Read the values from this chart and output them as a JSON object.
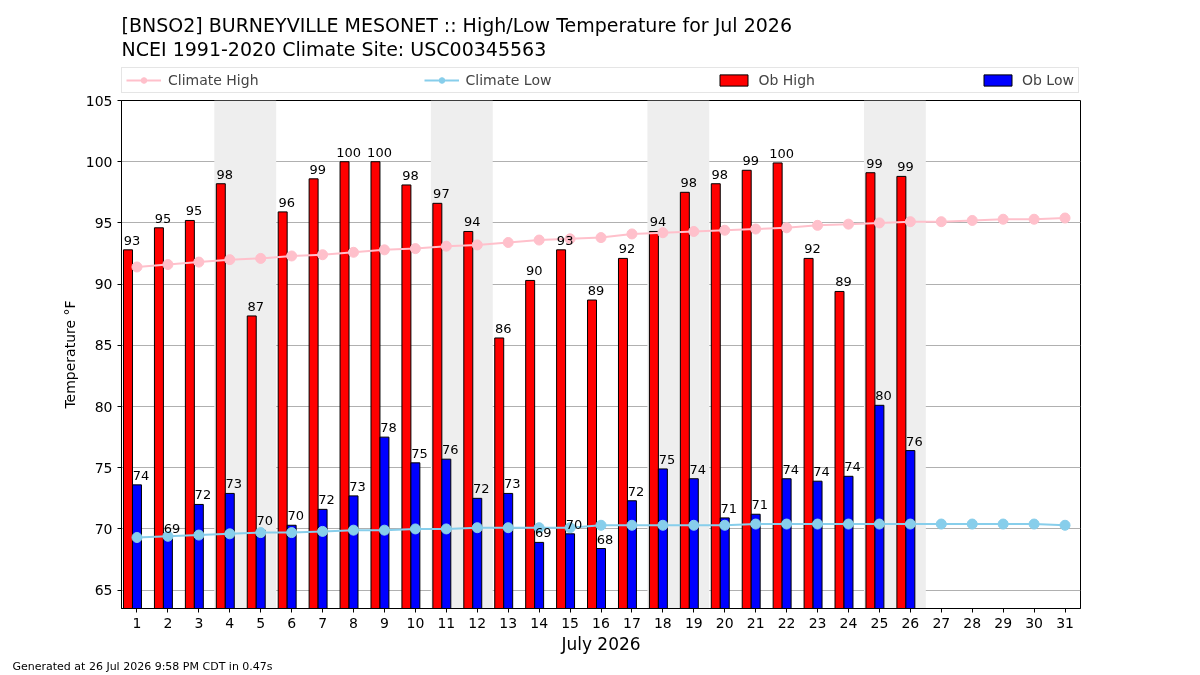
{
  "chart_data": {
    "type": "bar",
    "title": "[BNSO2] BURNEYVILLE MESONET :: High/Low Temperature for Jul 2026",
    "subtitle": "NCEI 1991-2020 Climate Site: USC00345563",
    "xlabel": "July 2026",
    "ylabel": "Temperature °F",
    "x": [
      1,
      2,
      3,
      4,
      5,
      6,
      7,
      8,
      9,
      10,
      11,
      12,
      13,
      14,
      15,
      16,
      17,
      18,
      19,
      20,
      21,
      22,
      23,
      24,
      25,
      26,
      27,
      28,
      29,
      30,
      31
    ],
    "xlim": [
      0.5,
      31.5
    ],
    "xticks": [
      1,
      2,
      3,
      4,
      5,
      6,
      7,
      8,
      9,
      10,
      11,
      12,
      13,
      14,
      15,
      16,
      17,
      18,
      19,
      20,
      21,
      22,
      23,
      24,
      25,
      26,
      27,
      28,
      29,
      30,
      31
    ],
    "ylim": [
      63.5,
      105
    ],
    "yticks": [
      65,
      70,
      75,
      80,
      85,
      90,
      95,
      100,
      105
    ],
    "grid": "y",
    "legend": "top",
    "marker": "circle",
    "bands": [
      {
        "axis": "x",
        "from": 3.5,
        "to": 5.5,
        "color": "#eeeeee"
      },
      {
        "axis": "x",
        "from": 10.5,
        "to": 12.5,
        "color": "#eeeeee"
      },
      {
        "axis": "x",
        "from": 17.5,
        "to": 19.5,
        "color": "#eeeeee"
      },
      {
        "axis": "x",
        "from": 24.5,
        "to": 26.5,
        "color": "#eeeeee"
      }
    ],
    "annotations": [
      "Generated at 26 Jul 2026 9:58 PM CDT in 0.47s"
    ],
    "series": [
      {
        "name": "Climate High",
        "type": "line",
        "color": "#ffc0cb",
        "values": [
          91.4,
          91.6,
          91.8,
          92.0,
          92.1,
          92.3,
          92.4,
          92.6,
          92.8,
          92.9,
          93.1,
          93.2,
          93.4,
          93.6,
          93.7,
          93.8,
          94.1,
          94.2,
          94.3,
          94.4,
          94.5,
          94.6,
          94.8,
          94.9,
          95.0,
          95.1,
          95.1,
          95.2,
          95.3,
          95.3,
          95.4
        ]
      },
      {
        "name": "Climate Low",
        "type": "line",
        "color": "#87ceeb",
        "values": [
          69.3,
          69.4,
          69.5,
          69.6,
          69.7,
          69.7,
          69.8,
          69.9,
          69.9,
          70.0,
          70.0,
          70.1,
          70.1,
          70.1,
          70.1,
          70.3,
          70.3,
          70.3,
          70.3,
          70.3,
          70.4,
          70.4,
          70.4,
          70.4,
          70.4,
          70.4,
          70.4,
          70.4,
          70.4,
          70.4,
          70.3
        ]
      },
      {
        "name": "Ob High",
        "color": "#ff0000",
        "values": [
          92.8,
          94.6,
          95.2,
          98.2,
          87.4,
          95.9,
          98.6,
          100.0,
          100.0,
          98.1,
          96.6,
          94.3,
          85.6,
          90.3,
          92.8,
          88.7,
          92.1,
          94.3,
          97.5,
          98.2,
          99.3,
          99.9,
          92.1,
          89.4,
          99.1,
          98.8,
          null,
          null,
          null,
          null,
          null
        ],
        "value_labels": [
          "93",
          "95",
          "95",
          "98",
          "87",
          "96",
          "99",
          "100",
          "100",
          "98",
          "97",
          "94",
          "86",
          "90",
          "93",
          "89",
          "92",
          "94",
          "98",
          "98",
          "99",
          "100",
          "92",
          "89",
          "99",
          "99",
          null,
          null,
          null,
          null,
          null
        ]
      },
      {
        "name": "Ob Low",
        "color": "#0000ff",
        "values": [
          73.6,
          69.3,
          72.0,
          72.9,
          69.9,
          70.3,
          71.6,
          72.7,
          77.5,
          75.4,
          75.7,
          72.5,
          72.9,
          68.9,
          69.6,
          68.4,
          72.3,
          74.9,
          74.1,
          70.9,
          71.2,
          74.1,
          73.9,
          74.3,
          80.1,
          76.4,
          null,
          null,
          null,
          null,
          null
        ],
        "value_labels": [
          "74",
          "69",
          "72",
          "73",
          "70",
          "70",
          "72",
          "73",
          "78",
          "75",
          "76",
          "72",
          "73",
          "69",
          "70",
          "68",
          "72",
          "75",
          "74",
          "71",
          "71",
          "74",
          "74",
          "74",
          "80",
          "76",
          null,
          null,
          null,
          null,
          null
        ]
      }
    ]
  }
}
